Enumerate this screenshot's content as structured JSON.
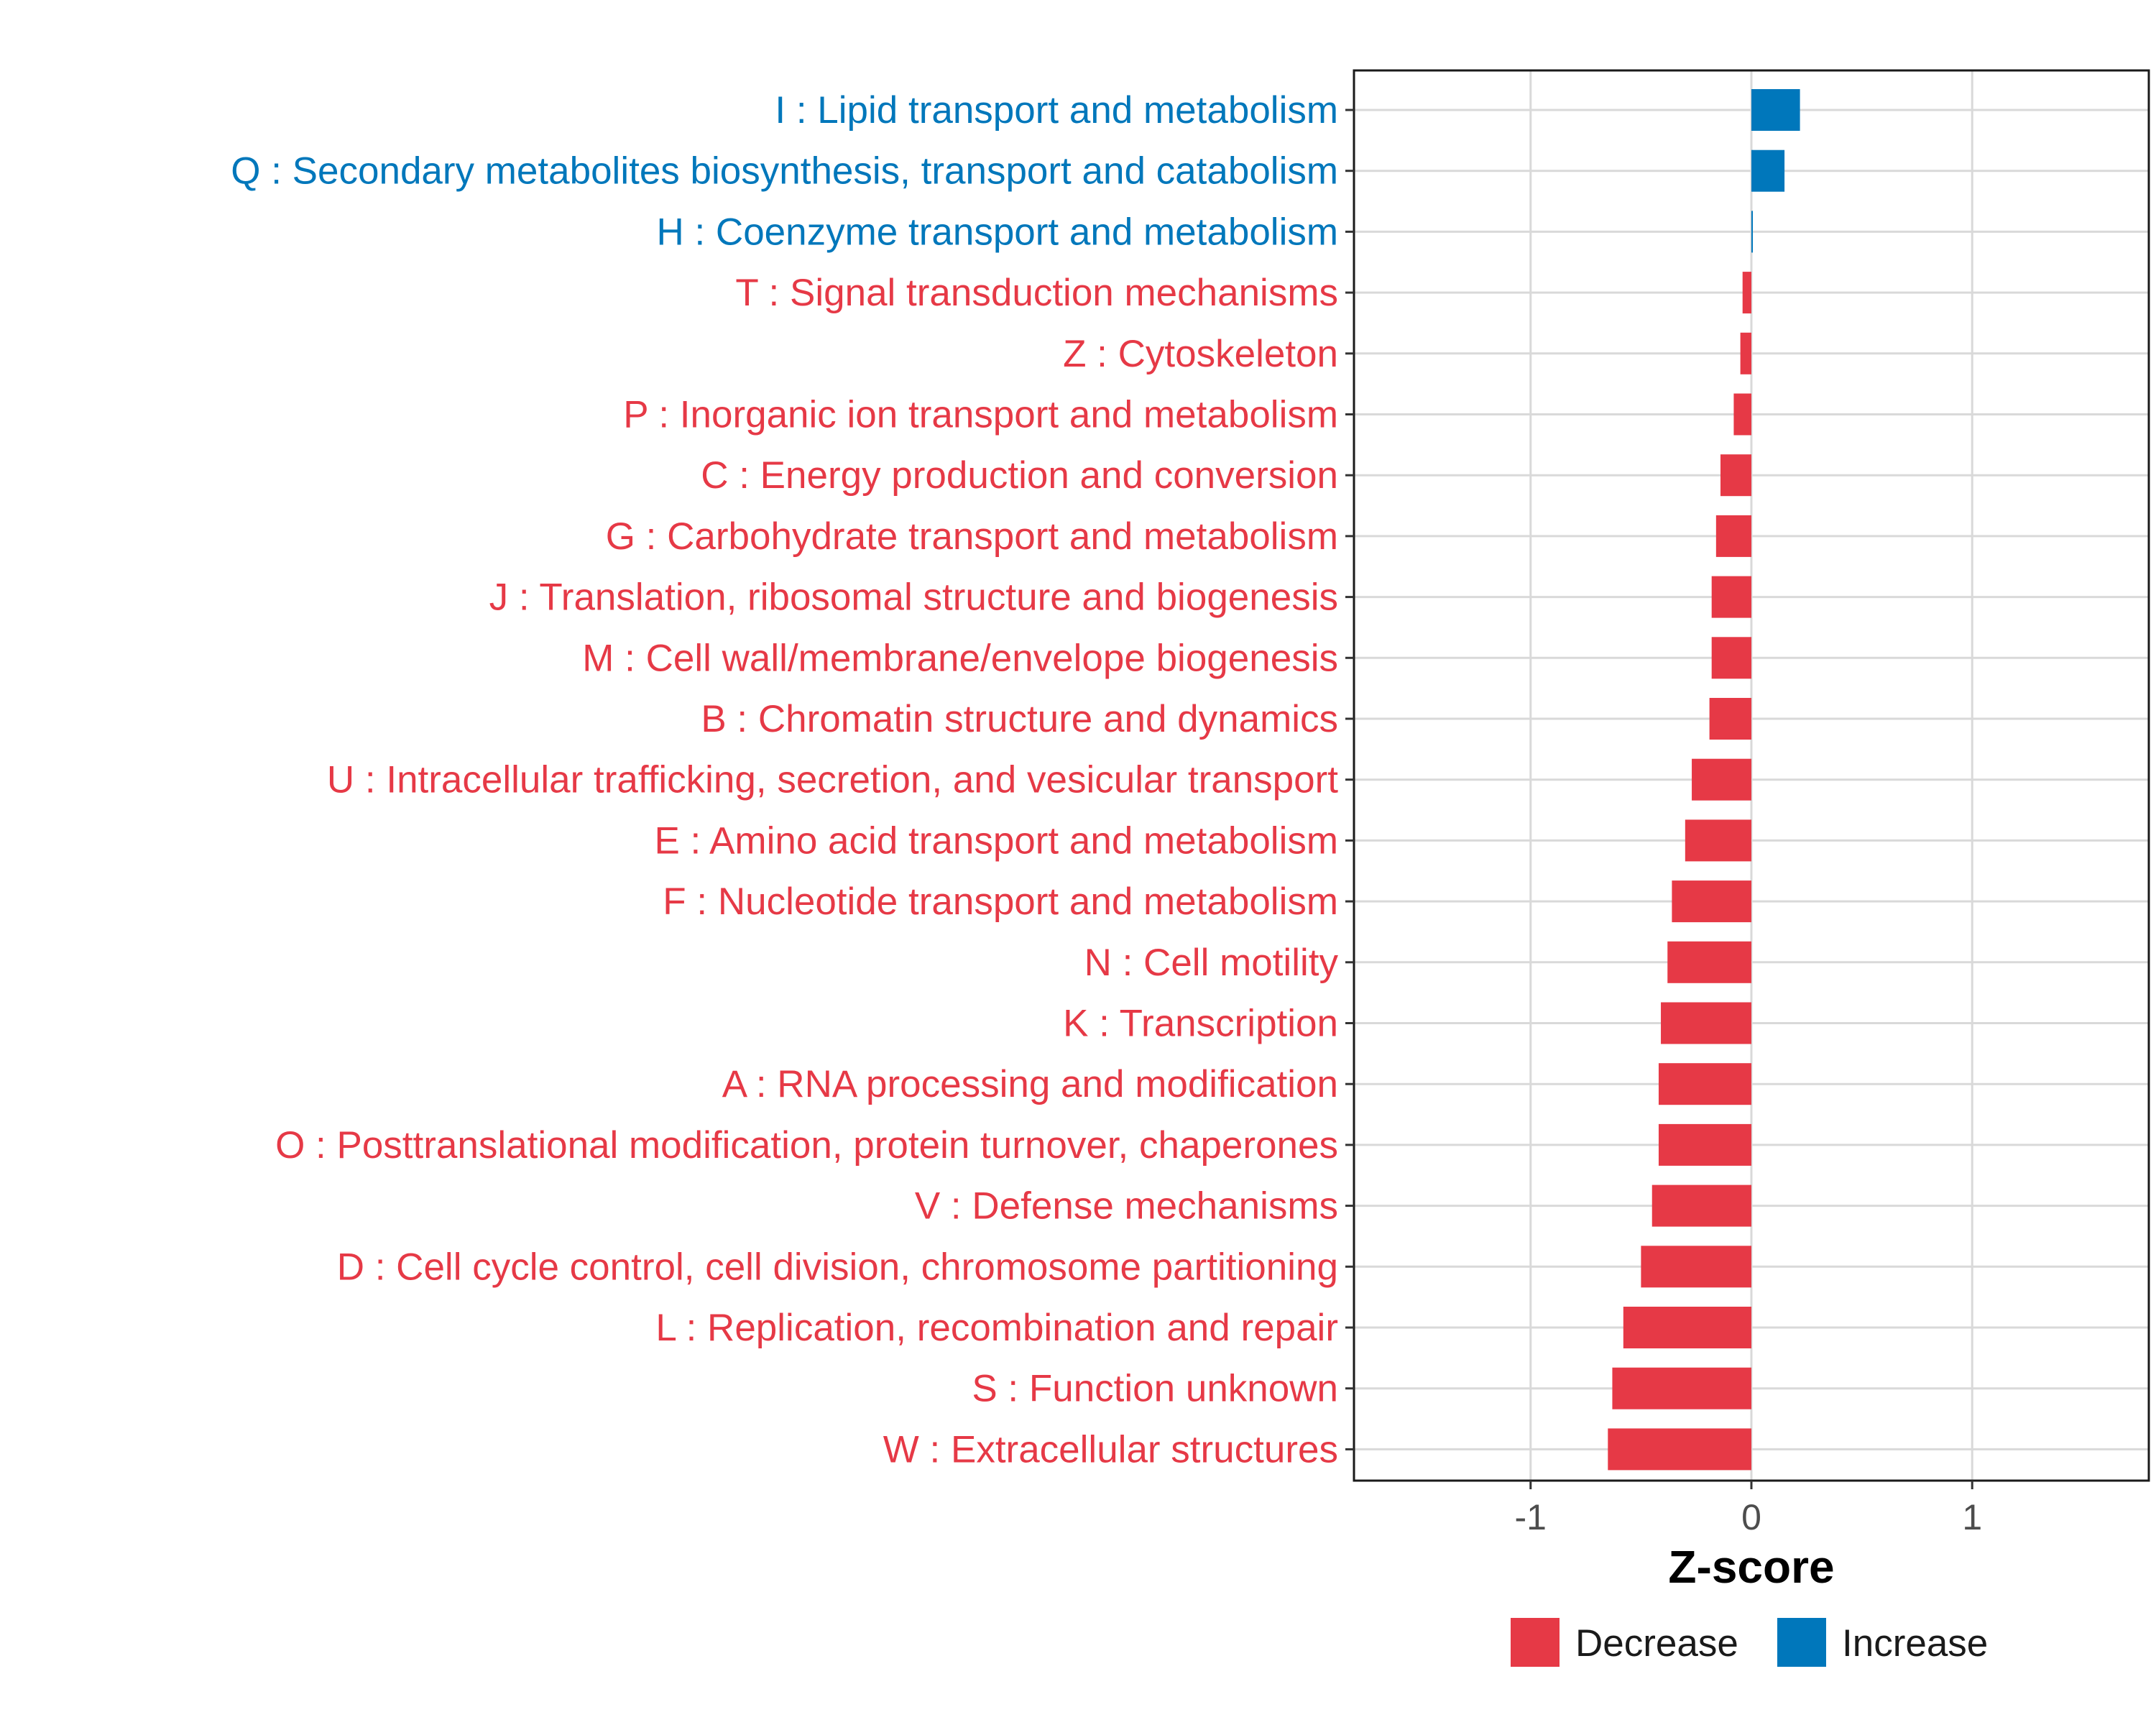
{
  "chart_data": {
    "type": "bar",
    "orientation": "horizontal",
    "title": "",
    "xlabel": "Z-score",
    "ylabel": "",
    "xlim": [
      -1.8,
      1.8
    ],
    "x_ticks": [
      -1,
      0,
      1
    ],
    "x_tick_labels": [
      "-1",
      "0",
      "1"
    ],
    "grid": true,
    "legend_position": "bottom",
    "colors": {
      "Decrease": "#E63946",
      "Increase": "#0077BB"
    },
    "legend": [
      {
        "label": "Decrease",
        "color": "#E63946"
      },
      {
        "label": "Increase",
        "color": "#0077BB"
      }
    ],
    "categories": [
      "I : Lipid transport and metabolism",
      "Q : Secondary metabolites biosynthesis, transport and catabolism",
      "H : Coenzyme transport and metabolism",
      "T : Signal transduction mechanisms",
      "Z : Cytoskeleton",
      "P : Inorganic ion transport and metabolism",
      "C : Energy production and conversion",
      "G : Carbohydrate transport and metabolism",
      "J : Translation, ribosomal structure and biogenesis",
      "M : Cell wall/membrane/envelope biogenesis",
      "B : Chromatin structure and dynamics",
      "U : Intracellular trafficking, secretion, and vesicular transport",
      "E : Amino acid transport and metabolism",
      "F : Nucleotide transport and metabolism",
      "N : Cell motility",
      "K : Transcription",
      "A : RNA processing and modification",
      "O : Posttranslational modification, protein turnover, chaperones",
      "V : Defense mechanisms",
      "D : Cell cycle control, cell division, chromosome partitioning",
      "L : Replication, recombination and repair",
      "S : Function unknown",
      "W : Extracellular structures"
    ],
    "values": [
      0.22,
      0.15,
      0.005,
      -0.04,
      -0.05,
      -0.08,
      -0.14,
      -0.16,
      -0.18,
      -0.18,
      -0.19,
      -0.27,
      -0.3,
      -0.36,
      -0.38,
      -0.41,
      -0.42,
      -0.42,
      -0.45,
      -0.5,
      -0.58,
      -0.63,
      -0.65
    ],
    "groups": [
      "Increase",
      "Increase",
      "Increase",
      "Decrease",
      "Decrease",
      "Decrease",
      "Decrease",
      "Decrease",
      "Decrease",
      "Decrease",
      "Decrease",
      "Decrease",
      "Decrease",
      "Decrease",
      "Decrease",
      "Decrease",
      "Decrease",
      "Decrease",
      "Decrease",
      "Decrease",
      "Decrease",
      "Decrease",
      "Decrease"
    ]
  }
}
